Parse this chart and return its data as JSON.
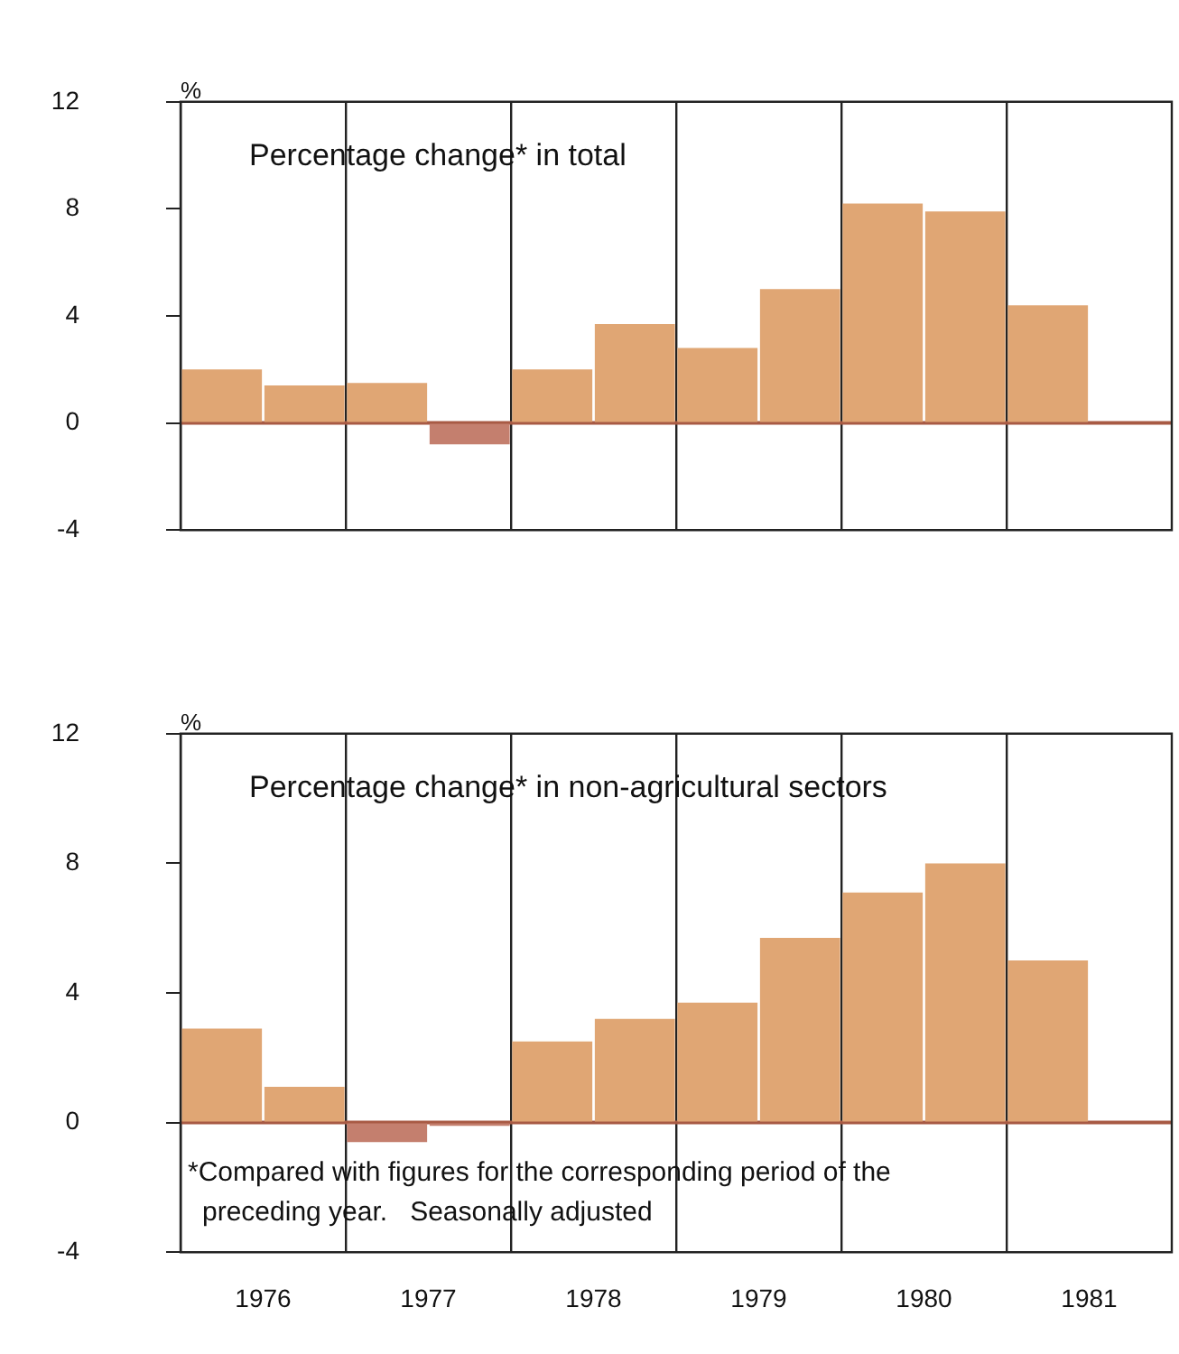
{
  "chart_data": [
    {
      "type": "bar",
      "title": "Percentage change* in total",
      "ylabel": "%",
      "categories": [
        "1976",
        null,
        "1977",
        null,
        "1978",
        null,
        "1979",
        null,
        "1980",
        null,
        "1981",
        null
      ],
      "values": [
        2.0,
        1.4,
        1.5,
        -0.8,
        2.0,
        3.7,
        2.8,
        5.0,
        8.2,
        7.9,
        4.4,
        null
      ],
      "colors": [
        "#e0a674",
        "#e0a674",
        "#e0a674",
        "#c47f6e",
        "#e0a674",
        "#e0a674",
        "#e0a674",
        "#e0a674",
        "#e0a674",
        "#e0a674",
        "#e0a674",
        "#e0a674"
      ],
      "ylim": [
        -4,
        12
      ],
      "yticks": [
        -4,
        0,
        4,
        8,
        12
      ],
      "grid": "x",
      "tick_labels": "y",
      "ref_lines": [
        {
          "axis": "y",
          "value": 0,
          "color": "#a85a44"
        }
      ]
    },
    {
      "type": "bar",
      "title": "Percentage change* in non-agricultural sectors",
      "ylabel": "%",
      "categories": [
        "1976",
        null,
        "1977",
        null,
        "1978",
        null,
        "1979",
        null,
        "1980",
        null,
        "1981",
        null
      ],
      "values": [
        2.9,
        1.1,
        -0.6,
        -0.1,
        2.5,
        3.2,
        3.7,
        5.7,
        7.1,
        8.0,
        5.0,
        null
      ],
      "colors": [
        "#e0a674",
        "#e0a674",
        "#c47f6e",
        "#c47f6e",
        "#e0a674",
        "#e0a674",
        "#e0a674",
        "#e0a674",
        "#e0a674",
        "#e0a674",
        "#e0a674",
        "#e0a674"
      ],
      "ylim": [
        -4,
        12
      ],
      "yticks": [
        -4,
        0,
        4,
        8,
        12
      ],
      "grid": "x",
      "ref_lines": [
        {
          "axis": "y",
          "value": 0,
          "color": "#a85a44"
        }
      ],
      "annotations": [
        "*Compared with figures for the corresponding period of the preceding year.   Seasonally adjusted"
      ]
    }
  ]
}
